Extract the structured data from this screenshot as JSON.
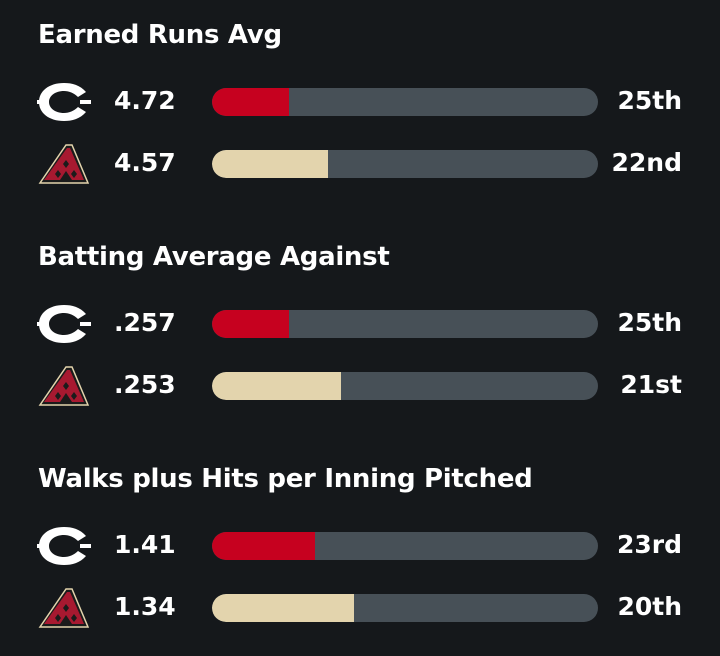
{
  "colors": {
    "background": "#15181b",
    "track": "#475057",
    "reds": "#c6011f",
    "dbacks": "#e3d4ad"
  },
  "teams": [
    {
      "icon": "reds-c-logo-icon",
      "color": "#c6011f"
    },
    {
      "icon": "dbacks-a-logo-icon",
      "color": "#e3d4ad"
    }
  ],
  "chart_data": {
    "type": "bar",
    "orientation": "horizontal",
    "grid": false,
    "legend": "none",
    "panels": [
      {
        "title": "Earned Runs Avg",
        "rows": [
          {
            "team_index": 0,
            "value_label": "4.72",
            "rank": "25th",
            "rank_num": 25
          },
          {
            "team_index": 1,
            "value_label": "4.57",
            "rank": "22nd",
            "rank_num": 22
          }
        ]
      },
      {
        "title": "Batting Average Against",
        "rows": [
          {
            "team_index": 0,
            "value_label": ".257",
            "rank": "25th",
            "rank_num": 25
          },
          {
            "team_index": 1,
            "value_label": ".253",
            "rank": "21st",
            "rank_num": 21
          }
        ]
      },
      {
        "title": "Walks plus Hits per Inning Pitched",
        "rows": [
          {
            "team_index": 0,
            "value_label": "1.41",
            "rank": "23rd",
            "rank_num": 23
          },
          {
            "team_index": 1,
            "value_label": "1.34",
            "rank": "20th",
            "rank_num": 20
          }
        ]
      }
    ]
  }
}
